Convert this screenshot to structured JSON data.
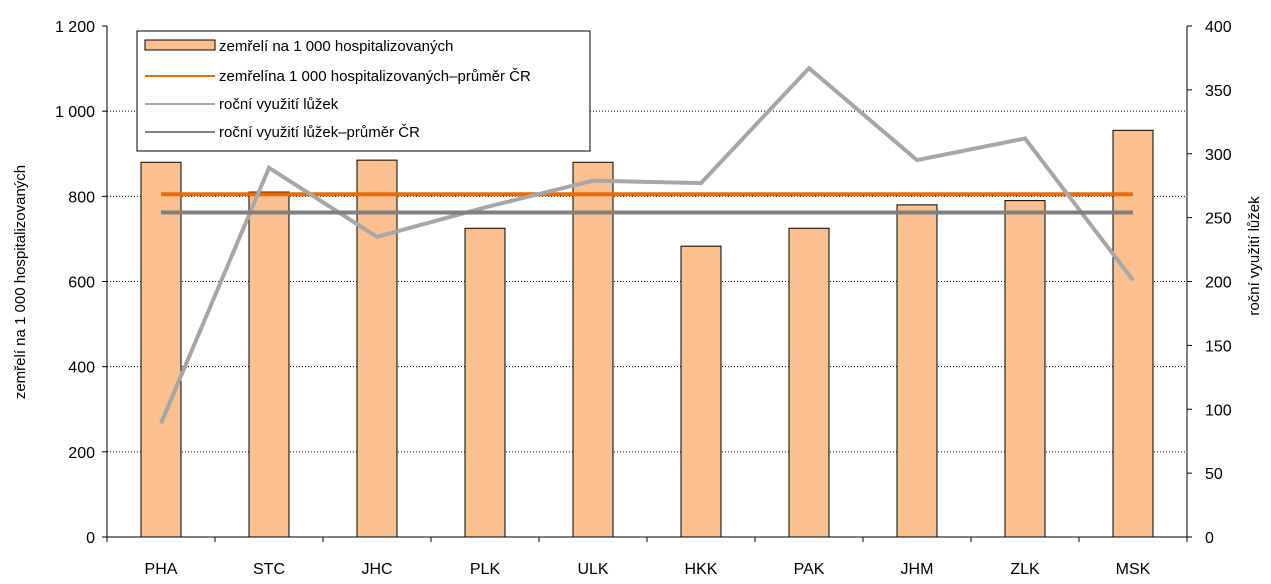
{
  "chart_data": {
    "type": "bar",
    "categories": [
      "PHA",
      "STC",
      "JHC",
      "PLK",
      "ULK",
      "HKK",
      "PAK",
      "JHM",
      "ZLK",
      "MSK"
    ],
    "series": [
      {
        "name": "zemřelí na 1 000 hospitalizovaných",
        "type": "bar",
        "axis": "left",
        "color": "#FAC090",
        "values": [
          880,
          810,
          885,
          725,
          880,
          683,
          725,
          780,
          790,
          955
        ]
      },
      {
        "name": "zemřelína 1 000 hospitalizovaných–průměr ČR",
        "type": "line",
        "axis": "left",
        "color": "#E46C0A",
        "values": [
          805,
          805,
          805,
          805,
          805,
          805,
          805,
          805,
          805,
          805
        ]
      },
      {
        "name": "roční využití lůžek",
        "type": "line",
        "axis": "right",
        "color": "#A6A6A6",
        "values": [
          89,
          289,
          235,
          258,
          279,
          277,
          367,
          295,
          312,
          201
        ]
      },
      {
        "name": "roční využití lůžek–průměr ČR",
        "type": "line",
        "axis": "right",
        "color": "#7F7F7F",
        "values": [
          254,
          254,
          254,
          254,
          254,
          254,
          254,
          254,
          254,
          254
        ]
      }
    ],
    "y_left": {
      "label": "zemřelí na 1 000 hospitalizovaných",
      "range": [
        0,
        1200
      ],
      "ticks": [
        0,
        200,
        400,
        600,
        800,
        1000,
        1200
      ],
      "tick_labels": [
        "0",
        "200",
        "400",
        "600",
        "800",
        "1 000",
        "1 200"
      ]
    },
    "y_right": {
      "label": "roční využití lůžek",
      "range": [
        0,
        400
      ],
      "ticks": [
        0,
        50,
        100,
        150,
        200,
        250,
        300,
        350,
        400
      ],
      "tick_labels": [
        "0",
        "50",
        "100",
        "150",
        "200",
        "250",
        "300",
        "350",
        "400"
      ]
    },
    "grid": "horizontal dotted",
    "legend_position": "top-left"
  }
}
